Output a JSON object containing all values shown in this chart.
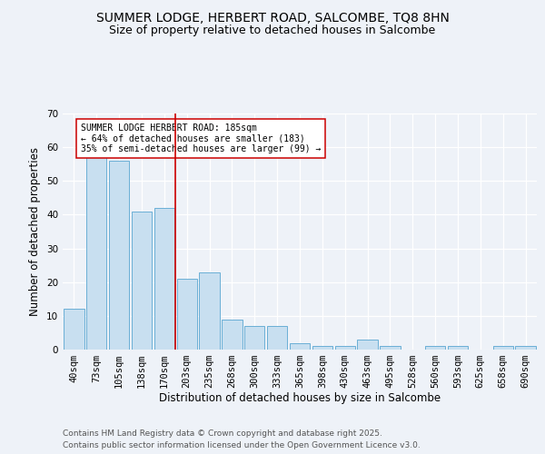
{
  "title_line1": "SUMMER LODGE, HERBERT ROAD, SALCOMBE, TQ8 8HN",
  "title_line2": "Size of property relative to detached houses in Salcombe",
  "xlabel": "Distribution of detached houses by size in Salcombe",
  "ylabel": "Number of detached properties",
  "categories": [
    "40sqm",
    "73sqm",
    "105sqm",
    "138sqm",
    "170sqm",
    "203sqm",
    "235sqm",
    "268sqm",
    "300sqm",
    "333sqm",
    "365sqm",
    "398sqm",
    "430sqm",
    "463sqm",
    "495sqm",
    "528sqm",
    "560sqm",
    "593sqm",
    "625sqm",
    "658sqm",
    "690sqm"
  ],
  "values": [
    12,
    57,
    56,
    41,
    42,
    21,
    23,
    9,
    7,
    7,
    2,
    1,
    1,
    3,
    1,
    0,
    1,
    1,
    0,
    1,
    1
  ],
  "bar_color": "#c8dff0",
  "bar_edge_color": "#6aafd6",
  "vline_x": 4.5,
  "vline_color": "#cc0000",
  "annotation_text": "SUMMER LODGE HERBERT ROAD: 185sqm\n← 64% of detached houses are smaller (183)\n35% of semi-detached houses are larger (99) →",
  "annotation_box_color": "white",
  "annotation_box_edge": "#cc0000",
  "ylim": [
    0,
    70
  ],
  "yticks": [
    0,
    10,
    20,
    30,
    40,
    50,
    60,
    70
  ],
  "footnote1": "Contains HM Land Registry data © Crown copyright and database right 2025.",
  "footnote2": "Contains public sector information licensed under the Open Government Licence v3.0.",
  "bg_color": "#eef2f8",
  "plot_bg_color": "#eef2f8",
  "grid_color": "white",
  "title_fontsize": 10,
  "subtitle_fontsize": 9,
  "axis_label_fontsize": 8.5,
  "tick_fontsize": 7.5,
  "annotation_fontsize": 7,
  "footnote_fontsize": 6.5
}
